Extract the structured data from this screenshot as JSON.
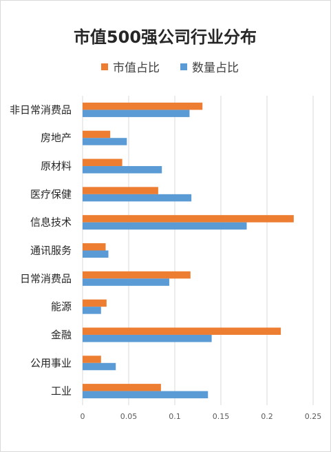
{
  "chart_data": {
    "type": "bar",
    "orientation": "horizontal",
    "title": "市值500强公司行业分布",
    "categories": [
      "非日常消费品",
      "房地产",
      "原材料",
      "医疗保健",
      "信息技术",
      "通讯服务",
      "日常消费品",
      "能源",
      "金融",
      "公用事业",
      "工业"
    ],
    "series": [
      {
        "name": "市值占比",
        "color": "#ed7d31",
        "values": [
          0.13,
          0.03,
          0.043,
          0.082,
          0.229,
          0.025,
          0.117,
          0.026,
          0.215,
          0.02,
          0.085
        ]
      },
      {
        "name": "数量占比",
        "color": "#5b9bd5",
        "values": [
          0.116,
          0.048,
          0.086,
          0.118,
          0.178,
          0.028,
          0.094,
          0.02,
          0.14,
          0.036,
          0.136
        ]
      }
    ],
    "xlim": [
      0,
      0.25
    ],
    "xticks": [
      "0",
      "0.05",
      "0.1",
      "0.15",
      "0.2",
      "0.25"
    ],
    "grid": true,
    "legend_position": "top"
  }
}
